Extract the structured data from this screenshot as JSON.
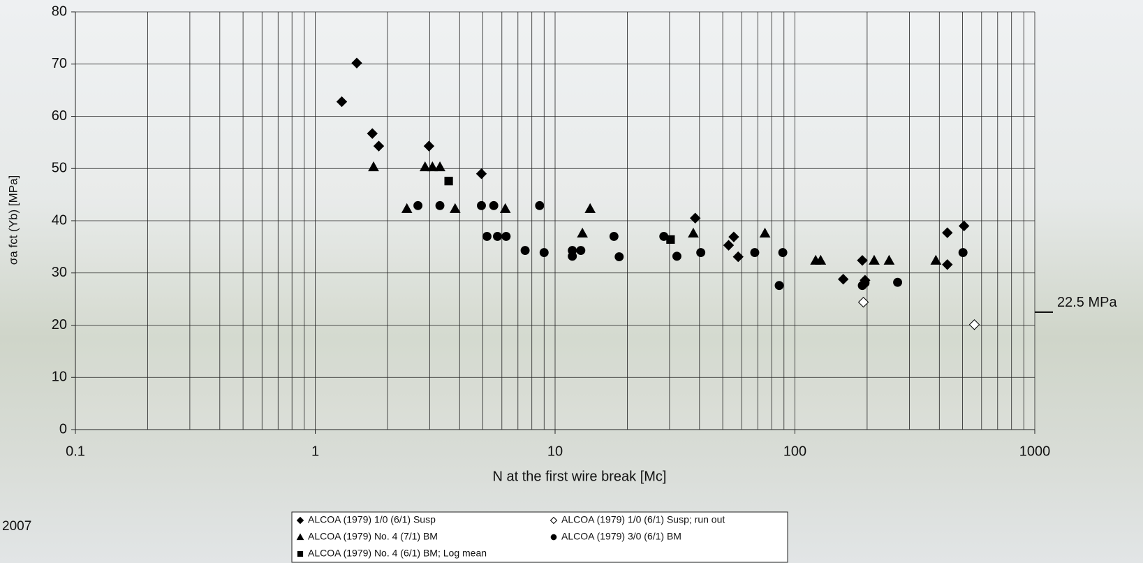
{
  "chart_data": {
    "type": "scatter",
    "x_label": "N at the first wire break [Mc]",
    "y_label": "σa fct (Yb) [MPa]",
    "footnote": "2007",
    "xscale": "log",
    "xlim": [
      0.1,
      1000
    ],
    "xticks": [
      0.1,
      1,
      10,
      100,
      1000
    ],
    "ylim": [
      0,
      80
    ],
    "yticks": [
      0,
      10,
      20,
      30,
      40,
      50,
      60,
      70,
      80
    ],
    "grid": true,
    "annotations": [
      {
        "text": "22.5 MPa",
        "y": 22.5
      }
    ],
    "series": [
      {
        "name": "ALCOA (1979) 1/0 (6/1) Susp",
        "color": "#000000",
        "marker": "diamond",
        "x": [
          1.29,
          1.49,
          1.73,
          1.84,
          2.98,
          4.93,
          38.4,
          52.9,
          55.6,
          58.0,
          159,
          191,
          196,
          432,
          432,
          507
        ],
        "values": [
          62.8,
          70.2,
          56.7,
          54.3,
          54.3,
          49.0,
          40.5,
          35.3,
          36.9,
          33.1,
          28.8,
          32.4,
          28.6,
          37.7,
          31.6,
          39.0
        ]
      },
      {
        "name": "ALCOA (1979) 1/0 (6/1) Susp; run out",
        "color": "#ffffff",
        "marker": "diamond",
        "x": [
          193,
          560
        ],
        "values": [
          24.4,
          20.1
        ]
      },
      {
        "name": "ALCOA (1979) No. 4 (7/1) BM",
        "color": "#000000",
        "marker": "triangle",
        "x": [
          1.75,
          2.87,
          3.08,
          3.31,
          2.41,
          3.83,
          6.2,
          13.0,
          14.0,
          37.7,
          75,
          122,
          128,
          214,
          247,
          387
        ],
        "values": [
          50.3,
          50.3,
          50.3,
          50.3,
          42.3,
          42.3,
          42.3,
          37.6,
          42.3,
          37.6,
          37.6,
          32.4,
          32.4,
          32.4,
          32.4,
          32.4
        ]
      },
      {
        "name": "ALCOA (1979) 3/0 (6/1) BM",
        "color": "#000000",
        "marker": "circle",
        "x": [
          2.68,
          3.31,
          4.93,
          5.55,
          8.62,
          5.2,
          5.75,
          6.25,
          7.5,
          9.0,
          11.8,
          11.8,
          12.8,
          17.6,
          18.5,
          28.4,
          32.2,
          40.5,
          68,
          86,
          89,
          191,
          196,
          268,
          502
        ],
        "values": [
          42.9,
          42.9,
          42.9,
          42.9,
          42.9,
          37.0,
          37.0,
          37.0,
          34.3,
          33.9,
          34.3,
          33.2,
          34.3,
          37.0,
          33.1,
          37.0,
          33.2,
          33.9,
          33.9,
          27.6,
          33.9,
          27.6,
          28.1,
          28.2,
          33.9
        ]
      },
      {
        "name": "ALCOA (1979) No. 4 (6/1) BM; Log mean",
        "color": "#000000",
        "marker": "square",
        "x": [
          3.6,
          30.3
        ],
        "values": [
          47.6,
          36.4
        ]
      }
    ]
  }
}
